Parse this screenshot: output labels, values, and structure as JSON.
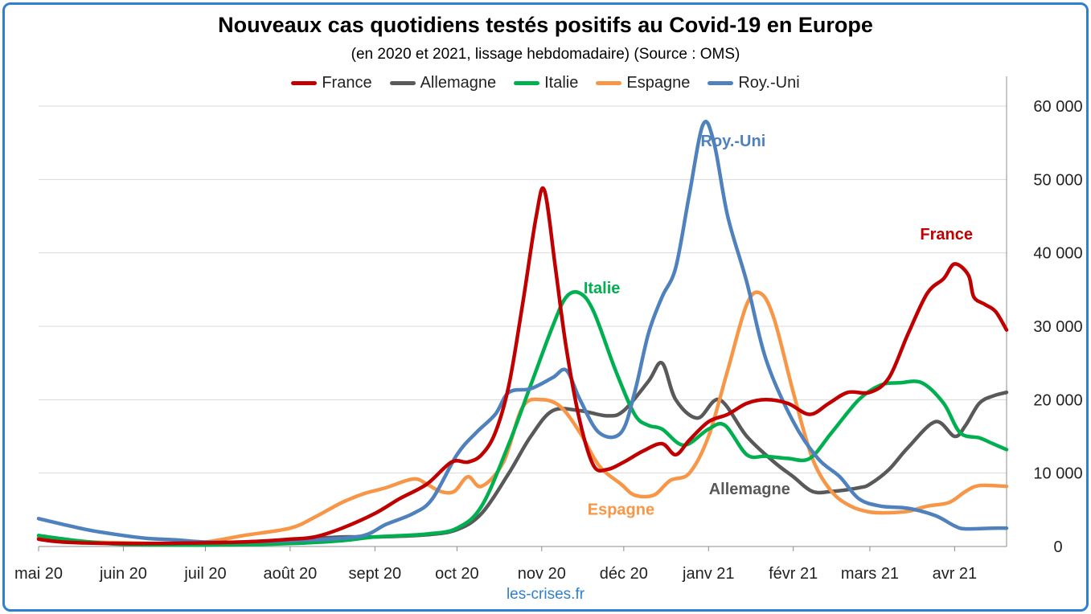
{
  "title": "Nouveaux cas quotidiens testés positifs au Covid-19 en Europe",
  "subtitle": "(en 2020 et 2021, lissage hebdomadaire) (Source : OMS)",
  "source": "les-crises.fr",
  "chart_data": {
    "type": "line",
    "title": "Nouveaux cas quotidiens testés positifs au Covid-19 en Europe",
    "subtitle": "(en 2020 et 2021, lissage hebdomadaire) (Source : OMS)",
    "xlabel": "",
    "ylabel": "",
    "x_ticks": [
      "mai 20",
      "juin 20",
      "juil 20",
      "août 20",
      "sept 20",
      "oct 20",
      "nov 20",
      "déc 20",
      "janv 21",
      "févr 21",
      "mars 21",
      "avr 21"
    ],
    "x_tick_dates": [
      "2020-05-01",
      "2020-06-01",
      "2020-07-01",
      "2020-08-01",
      "2020-09-01",
      "2020-10-01",
      "2020-11-01",
      "2020-12-01",
      "2021-01-01",
      "2021-02-01",
      "2021-03-01",
      "2021-04-01"
    ],
    "xlim": [
      "2020-05-01",
      "2021-04-20"
    ],
    "ylim": [
      0,
      60000
    ],
    "y_ticks": [
      0,
      10000,
      20000,
      30000,
      40000,
      50000,
      60000
    ],
    "y_tick_labels": [
      "0",
      "10 000",
      "20 000",
      "30 000",
      "40 000",
      "50 000",
      "60 000"
    ],
    "y_axis_side": "right",
    "grid": "horizontal",
    "legend_position": "top",
    "series": [
      {
        "name": "France",
        "color": "#c00000",
        "label": "France",
        "points": [
          [
            "2020-05-01",
            1000
          ],
          [
            "2020-05-10",
            600
          ],
          [
            "2020-06-01",
            400
          ],
          [
            "2020-07-01",
            500
          ],
          [
            "2020-07-20",
            700
          ],
          [
            "2020-08-01",
            1000
          ],
          [
            "2020-08-10",
            1300
          ],
          [
            "2020-08-20",
            2500
          ],
          [
            "2020-09-01",
            4500
          ],
          [
            "2020-09-10",
            6500
          ],
          [
            "2020-09-20",
            8500
          ],
          [
            "2020-09-29",
            11500
          ],
          [
            "2020-10-05",
            11500
          ],
          [
            "2020-10-10",
            12500
          ],
          [
            "2020-10-15",
            15500
          ],
          [
            "2020-10-20",
            22000
          ],
          [
            "2020-10-25",
            33000
          ],
          [
            "2020-10-30",
            45000
          ],
          [
            "2020-11-02",
            48500
          ],
          [
            "2020-11-06",
            38000
          ],
          [
            "2020-11-10",
            27000
          ],
          [
            "2020-11-15",
            17000
          ],
          [
            "2020-11-20",
            11000
          ],
          [
            "2020-11-25",
            10500
          ],
          [
            "2020-12-01",
            11500
          ],
          [
            "2020-12-08",
            13000
          ],
          [
            "2020-12-15",
            14000
          ],
          [
            "2020-12-20",
            12500
          ],
          [
            "2020-12-25",
            14500
          ],
          [
            "2021-01-01",
            17000
          ],
          [
            "2021-01-08",
            18000
          ],
          [
            "2021-01-15",
            19500
          ],
          [
            "2021-01-22",
            20000
          ],
          [
            "2021-01-30",
            19500
          ],
          [
            "2021-02-07",
            18000
          ],
          [
            "2021-02-14",
            19500
          ],
          [
            "2021-02-21",
            21000
          ],
          [
            "2021-03-01",
            21000
          ],
          [
            "2021-03-08",
            23000
          ],
          [
            "2021-03-15",
            29000
          ],
          [
            "2021-03-22",
            34500
          ],
          [
            "2021-03-28",
            36500
          ],
          [
            "2021-04-01",
            38500
          ],
          [
            "2021-04-06",
            37000
          ],
          [
            "2021-04-08",
            34000
          ],
          [
            "2021-04-12",
            33000
          ],
          [
            "2021-04-16",
            32000
          ],
          [
            "2021-04-20",
            29500
          ]
        ]
      },
      {
        "name": "Allemagne",
        "color": "#595959",
        "label": "Allemagne",
        "points": [
          [
            "2020-05-01",
            1200
          ],
          [
            "2020-05-10",
            800
          ],
          [
            "2020-06-01",
            400
          ],
          [
            "2020-07-01",
            400
          ],
          [
            "2020-08-01",
            900
          ],
          [
            "2020-08-20",
            1300
          ],
          [
            "2020-09-01",
            1300
          ],
          [
            "2020-09-20",
            1600
          ],
          [
            "2020-10-01",
            2300
          ],
          [
            "2020-10-10",
            4500
          ],
          [
            "2020-10-20",
            10000
          ],
          [
            "2020-10-28",
            15000
          ],
          [
            "2020-11-05",
            18500
          ],
          [
            "2020-11-15",
            18500
          ],
          [
            "2020-11-25",
            17800
          ],
          [
            "2020-12-01",
            18500
          ],
          [
            "2020-12-10",
            22500
          ],
          [
            "2020-12-15",
            25000
          ],
          [
            "2020-12-20",
            20000
          ],
          [
            "2020-12-28",
            17500
          ],
          [
            "2021-01-05",
            20000
          ],
          [
            "2021-01-15",
            15000
          ],
          [
            "2021-01-25",
            11500
          ],
          [
            "2021-02-01",
            9500
          ],
          [
            "2021-02-08",
            7500
          ],
          [
            "2021-02-15",
            7500
          ],
          [
            "2021-02-25",
            8000
          ],
          [
            "2021-03-01",
            8500
          ],
          [
            "2021-03-08",
            10500
          ],
          [
            "2021-03-15",
            13500
          ],
          [
            "2021-03-25",
            17000
          ],
          [
            "2021-04-01",
            15000
          ],
          [
            "2021-04-05",
            16500
          ],
          [
            "2021-04-10",
            19500
          ],
          [
            "2021-04-15",
            20500
          ],
          [
            "2021-04-20",
            21000
          ]
        ]
      },
      {
        "name": "Italie",
        "color": "#00b050",
        "label": "Italie",
        "points": [
          [
            "2020-05-01",
            1500
          ],
          [
            "2020-05-15",
            800
          ],
          [
            "2020-06-01",
            300
          ],
          [
            "2020-07-01",
            200
          ],
          [
            "2020-08-01",
            400
          ],
          [
            "2020-08-20",
            800
          ],
          [
            "2020-09-01",
            1300
          ],
          [
            "2020-09-20",
            1700
          ],
          [
            "2020-10-01",
            2500
          ],
          [
            "2020-10-10",
            5500
          ],
          [
            "2020-10-20",
            14000
          ],
          [
            "2020-10-28",
            22000
          ],
          [
            "2020-11-05",
            30000
          ],
          [
            "2020-11-10",
            34000
          ],
          [
            "2020-11-15",
            34500
          ],
          [
            "2020-11-20",
            32000
          ],
          [
            "2020-11-28",
            24000
          ],
          [
            "2020-12-05",
            18000
          ],
          [
            "2020-12-10",
            16500
          ],
          [
            "2020-12-15",
            16000
          ],
          [
            "2020-12-23",
            13800
          ],
          [
            "2021-01-01",
            16000
          ],
          [
            "2021-01-07",
            16500
          ],
          [
            "2021-01-15",
            12500
          ],
          [
            "2021-01-22",
            12300
          ],
          [
            "2021-01-30",
            12000
          ],
          [
            "2021-02-07",
            12000
          ],
          [
            "2021-02-15",
            15500
          ],
          [
            "2021-02-25",
            20000
          ],
          [
            "2021-03-05",
            22000
          ],
          [
            "2021-03-12",
            22300
          ],
          [
            "2021-03-20",
            22300
          ],
          [
            "2021-03-28",
            19500
          ],
          [
            "2021-04-03",
            15500
          ],
          [
            "2021-04-10",
            14800
          ],
          [
            "2021-04-15",
            14000
          ],
          [
            "2021-04-20",
            13200
          ]
        ]
      },
      {
        "name": "Espagne",
        "color": "#f79646",
        "label": "Espagne",
        "points": [
          [
            "2020-05-01",
            1300
          ],
          [
            "2020-05-15",
            700
          ],
          [
            "2020-06-01",
            500
          ],
          [
            "2020-06-20",
            400
          ],
          [
            "2020-07-01",
            600
          ],
          [
            "2020-07-15",
            1500
          ],
          [
            "2020-08-01",
            2500
          ],
          [
            "2020-08-10",
            4000
          ],
          [
            "2020-08-20",
            6000
          ],
          [
            "2020-08-28",
            7200
          ],
          [
            "2020-09-05",
            8000
          ],
          [
            "2020-09-15",
            9200
          ],
          [
            "2020-09-20",
            8500
          ],
          [
            "2020-09-25",
            7500
          ],
          [
            "2020-09-30",
            7500
          ],
          [
            "2020-10-05",
            9500
          ],
          [
            "2020-10-10",
            8200
          ],
          [
            "2020-10-18",
            11500
          ],
          [
            "2020-10-25",
            19000
          ],
          [
            "2020-11-01",
            20000
          ],
          [
            "2020-11-08",
            19000
          ],
          [
            "2020-11-15",
            15500
          ],
          [
            "2020-11-22",
            11000
          ],
          [
            "2020-11-30",
            8500
          ],
          [
            "2020-12-05",
            7000
          ],
          [
            "2020-12-12",
            7000
          ],
          [
            "2020-12-18",
            9000
          ],
          [
            "2020-12-25",
            10000
          ],
          [
            "2021-01-01",
            15000
          ],
          [
            "2021-01-08",
            24000
          ],
          [
            "2021-01-15",
            33000
          ],
          [
            "2021-01-20",
            34500
          ],
          [
            "2021-01-25",
            31000
          ],
          [
            "2021-02-01",
            21000
          ],
          [
            "2021-02-08",
            12000
          ],
          [
            "2021-02-15",
            7500
          ],
          [
            "2021-02-22",
            5500
          ],
          [
            "2021-03-01",
            4700
          ],
          [
            "2021-03-08",
            4600
          ],
          [
            "2021-03-15",
            4800
          ],
          [
            "2021-03-22",
            5500
          ],
          [
            "2021-03-30",
            6000
          ],
          [
            "2021-04-05",
            7500
          ],
          [
            "2021-04-10",
            8300
          ],
          [
            "2021-04-20",
            8200
          ]
        ]
      },
      {
        "name": "Roy.-Uni",
        "color": "#4f81bd",
        "label": "Roy.-Uni",
        "points": [
          [
            "2020-05-01",
            3800
          ],
          [
            "2020-05-10",
            3000
          ],
          [
            "2020-05-20",
            2200
          ],
          [
            "2020-06-01",
            1500
          ],
          [
            "2020-06-10",
            1100
          ],
          [
            "2020-06-20",
            900
          ],
          [
            "2020-07-01",
            600
          ],
          [
            "2020-07-15",
            600
          ],
          [
            "2020-08-01",
            800
          ],
          [
            "2020-08-15",
            1000
          ],
          [
            "2020-08-28",
            1500
          ],
          [
            "2020-09-05",
            3000
          ],
          [
            "2020-09-15",
            4500
          ],
          [
            "2020-09-22",
            6500
          ],
          [
            "2020-10-01",
            12500
          ],
          [
            "2020-10-08",
            15500
          ],
          [
            "2020-10-15",
            18000
          ],
          [
            "2020-10-20",
            21000
          ],
          [
            "2020-10-28",
            21500
          ],
          [
            "2020-11-05",
            23000
          ],
          [
            "2020-11-10",
            24000
          ],
          [
            "2020-11-15",
            20000
          ],
          [
            "2020-11-22",
            15500
          ],
          [
            "2020-11-30",
            15500
          ],
          [
            "2020-12-05",
            21000
          ],
          [
            "2020-12-10",
            29000
          ],
          [
            "2020-12-15",
            34000
          ],
          [
            "2020-12-20",
            38000
          ],
          [
            "2020-12-25",
            48000
          ],
          [
            "2020-12-30",
            57500
          ],
          [
            "2021-01-03",
            55000
          ],
          [
            "2021-01-08",
            45000
          ],
          [
            "2021-01-15",
            36000
          ],
          [
            "2021-01-22",
            25500
          ],
          [
            "2021-02-01",
            17000
          ],
          [
            "2021-02-10",
            12000
          ],
          [
            "2021-02-18",
            9500
          ],
          [
            "2021-02-25",
            6500
          ],
          [
            "2021-03-05",
            5500
          ],
          [
            "2021-03-15",
            5200
          ],
          [
            "2021-03-25",
            4200
          ],
          [
            "2021-04-01",
            2800
          ],
          [
            "2021-04-05",
            2400
          ],
          [
            "2021-04-15",
            2500
          ],
          [
            "2021-04-20",
            2500
          ]
        ]
      }
    ],
    "annotations": [
      {
        "text": "Roy.-Uni",
        "color": "#4f81bd",
        "x": "2021-01-10",
        "y": 54500
      },
      {
        "text": "France",
        "color": "#c00000",
        "x": "2021-03-29",
        "y": 41800
      },
      {
        "text": "Italie",
        "color": "#00b050",
        "x": "2020-11-23",
        "y": 34500
      },
      {
        "text": "Allemagne",
        "color": "#595959",
        "x": "2021-01-16",
        "y": 7100
      },
      {
        "text": "Espagne",
        "color": "#f79646",
        "x": "2020-11-30",
        "y": 4300
      }
    ]
  }
}
